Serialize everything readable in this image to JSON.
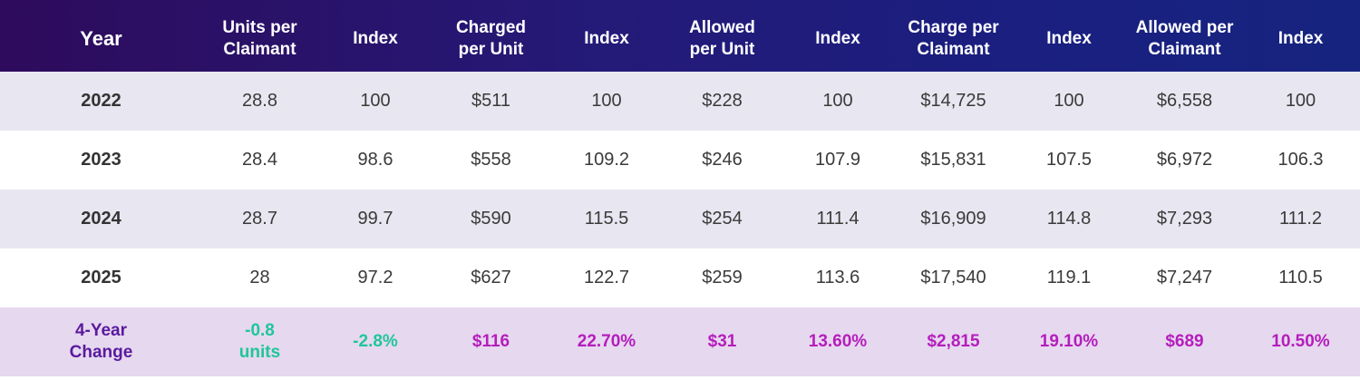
{
  "headers": [
    "Year",
    "Units per\nClaimant",
    "Index",
    "Charged\nper Unit",
    "Index",
    "Allowed\nper Unit",
    "Index",
    "Charge per\nClaimant",
    "Index",
    "Allowed per\nClaimant",
    "Index"
  ],
  "rows": [
    [
      "2022",
      "28.8",
      "100",
      "$511",
      "100",
      "$228",
      "100",
      "$14,725",
      "100",
      "$6,558",
      "100"
    ],
    [
      "2023",
      "28.4",
      "98.6",
      "$558",
      "109.2",
      "$246",
      "107.9",
      "$15,831",
      "107.5",
      "$6,972",
      "106.3"
    ],
    [
      "2024",
      "28.7",
      "99.7",
      "$590",
      "115.5",
      "$254",
      "111.4",
      "$16,909",
      "114.8",
      "$7,293",
      "111.2"
    ],
    [
      "2025",
      "28",
      "97.2",
      "$627",
      "122.7",
      "$259",
      "113.6",
      "$17,540",
      "119.1",
      "$7,247",
      "110.5"
    ]
  ],
  "change_row": {
    "label_line1": "4-Year",
    "label_line2": "Change",
    "units_line1": "-0.8",
    "units_line2": "units",
    "values": [
      "-2.8%",
      "$116",
      "22.70%",
      "$31",
      "13.60%",
      "$2,815",
      "19.10%",
      "$689",
      "10.50%"
    ]
  },
  "colors": {
    "header_start": "#2e0b5c",
    "header_end": "#16247f",
    "row_shade": "#e8e7f1",
    "change_bg": "#e6d8ef",
    "label_purple": "#5a1a9e",
    "green": "#1fc69a",
    "magenta": "#b51dbd"
  }
}
